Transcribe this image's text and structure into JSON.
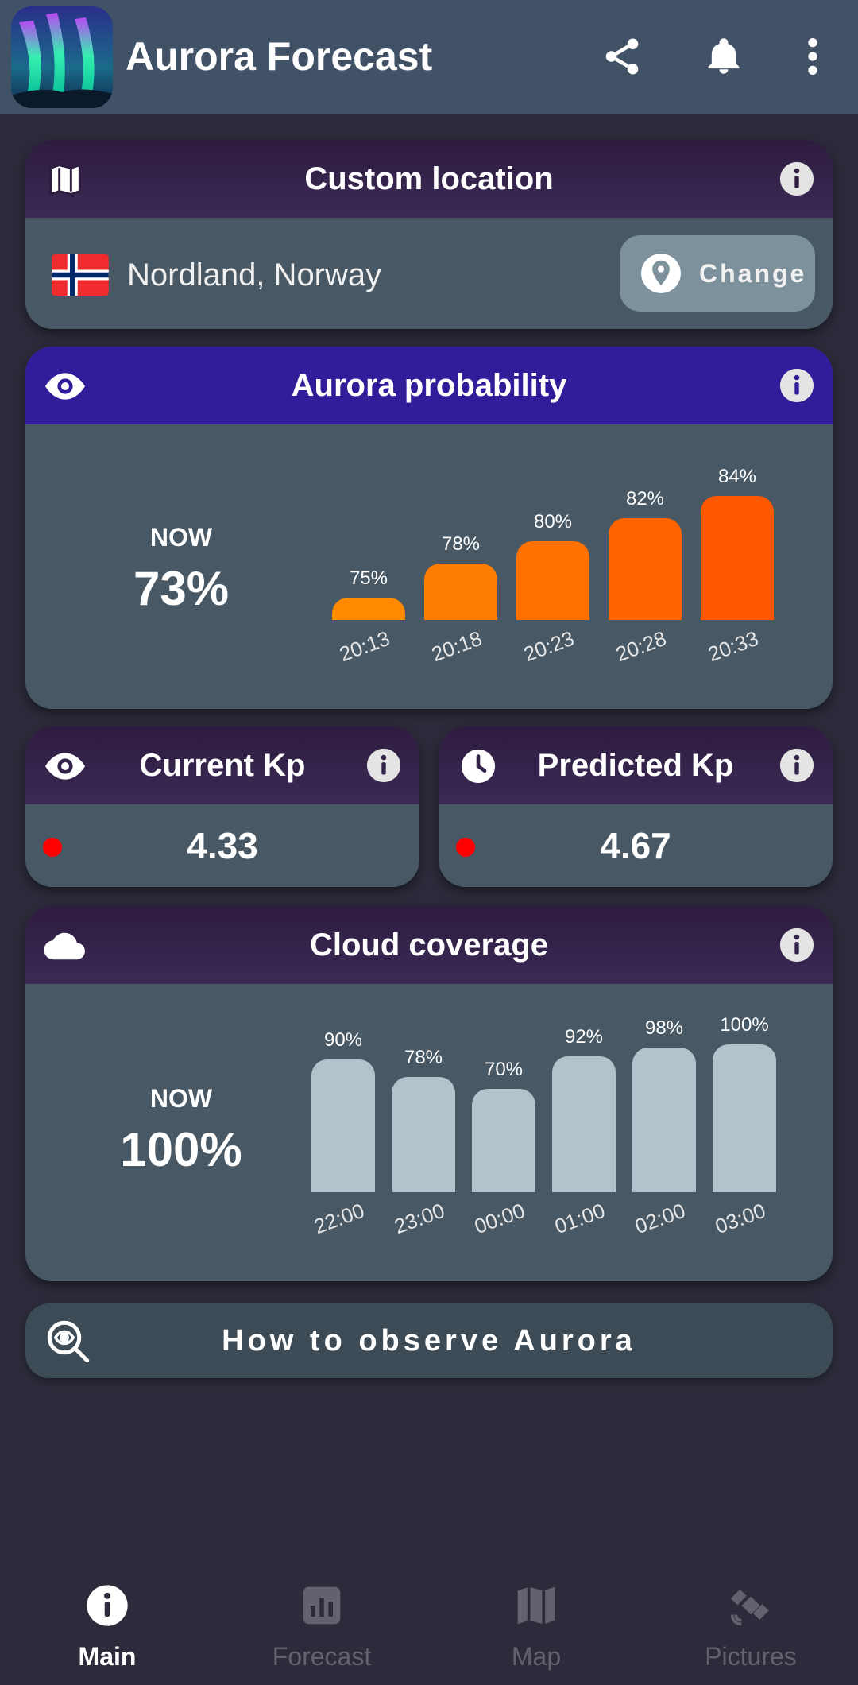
{
  "appbar": {
    "title": "Aurora Forecast",
    "icons": [
      "share-icon",
      "bell-icon",
      "more-vert-icon"
    ]
  },
  "location_card": {
    "title": "Custom location",
    "location": "Nordland, Norway",
    "change_label": "Change",
    "icons": [
      "map-icon",
      "info-icon",
      "flag-norway-icon",
      "pin-icon"
    ]
  },
  "probability_card": {
    "title": "Aurora probability",
    "now_label": "NOW",
    "now_value": "73%",
    "icons": [
      "eye-icon",
      "info-icon"
    ],
    "bar_color": "#ff6a00"
  },
  "kp": {
    "current": {
      "title": "Current Kp",
      "value": "4.33",
      "icon": "eye-icon"
    },
    "predicted": {
      "title": "Predicted Kp",
      "value": "4.67",
      "icon": "clock-icon"
    },
    "status_color": "#ff0000"
  },
  "cloud_card": {
    "title": "Cloud coverage",
    "now_label": "NOW",
    "now_value": "100%",
    "icons": [
      "cloud-icon",
      "info-icon"
    ],
    "bar_color": "#b4c2cb"
  },
  "observe": {
    "label": "How to observe Aurora",
    "icon": "search-eye-icon"
  },
  "nav": {
    "items": [
      {
        "label": "Main",
        "icon": "info-icon",
        "active": true
      },
      {
        "label": "Forecast",
        "icon": "chart-icon",
        "active": false
      },
      {
        "label": "Map",
        "icon": "map-icon",
        "active": false
      },
      {
        "label": "Pictures",
        "icon": "satellite-icon",
        "active": false
      }
    ]
  },
  "chart_data": [
    {
      "type": "bar",
      "categories": [
        "20:13",
        "20:18",
        "20:23",
        "20:28",
        "20:33"
      ],
      "values": [
        75,
        78,
        80,
        82,
        84
      ],
      "value_labels": [
        "75%",
        "78%",
        "80%",
        "82%",
        "84%"
      ]
    },
    {
      "type": "bar",
      "categories": [
        "22:00",
        "23:00",
        "00:00",
        "01:00",
        "02:00",
        "03:00"
      ],
      "values": [
        90,
        78,
        70,
        92,
        98,
        100
      ],
      "value_labels": [
        "90%",
        "78%",
        "70%",
        "92%",
        "98%",
        "100%"
      ]
    }
  ]
}
